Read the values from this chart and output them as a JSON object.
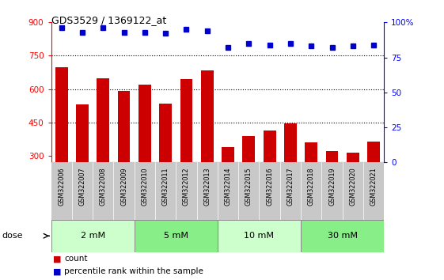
{
  "title": "GDS3529 / 1369122_at",
  "categories": [
    "GSM322006",
    "GSM322007",
    "GSM322008",
    "GSM322009",
    "GSM322010",
    "GSM322011",
    "GSM322012",
    "GSM322013",
    "GSM322014",
    "GSM322015",
    "GSM322016",
    "GSM322017",
    "GSM322018",
    "GSM322019",
    "GSM322020",
    "GSM322021"
  ],
  "bar_values": [
    700,
    530,
    650,
    590,
    620,
    535,
    645,
    685,
    340,
    390,
    415,
    445,
    360,
    320,
    315,
    365
  ],
  "dot_values": [
    96,
    93,
    96,
    93,
    93,
    92,
    95,
    94,
    82,
    85,
    84,
    85,
    83,
    82,
    83,
    84
  ],
  "bar_color": "#cc0000",
  "dot_color": "#0000cc",
  "ylim_left": [
    270,
    900
  ],
  "ylim_right": [
    0,
    100
  ],
  "yticks_left": [
    300,
    450,
    600,
    750,
    900
  ],
  "yticks_right": [
    0,
    25,
    50,
    75,
    100
  ],
  "yticklabels_right": [
    "0",
    "25",
    "50",
    "75",
    "100%"
  ],
  "grid_lines": [
    450,
    600,
    750
  ],
  "dose_groups": [
    {
      "label": "2 mM",
      "start": 0,
      "end": 3,
      "color": "#ccffcc"
    },
    {
      "label": "5 mM",
      "start": 4,
      "end": 7,
      "color": "#88ee88"
    },
    {
      "label": "10 mM",
      "start": 8,
      "end": 11,
      "color": "#ccffcc"
    },
    {
      "label": "30 mM",
      "start": 12,
      "end": 15,
      "color": "#88ee88"
    }
  ],
  "legend_count_label": "count",
  "legend_percentile_label": "percentile rank within the sample",
  "dose_label": "dose",
  "bg_color": "#ffffff",
  "xtick_bg": "#c8c8c8",
  "dose_border_color": "#888888"
}
